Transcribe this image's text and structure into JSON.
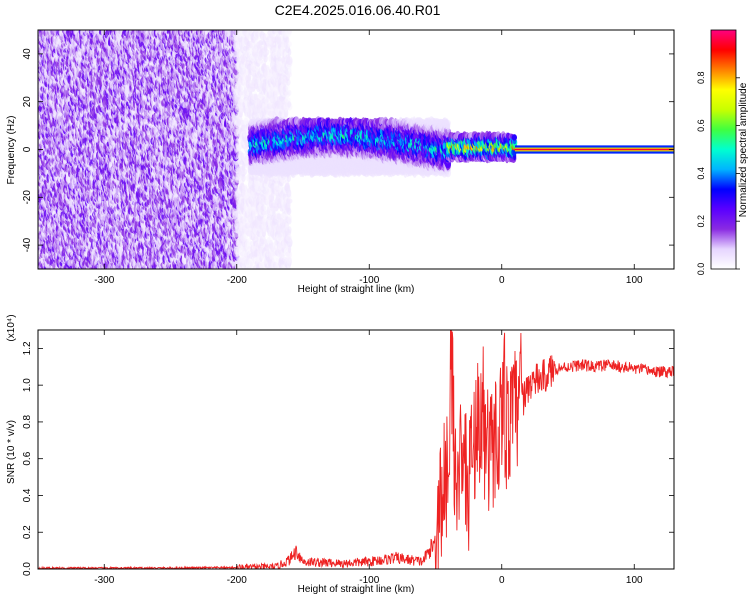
{
  "title": "C2E4.2025.016.06.40.R01",
  "chart_data": [
    {
      "type": "heatmap",
      "xlabel": "Height of straight line (km)",
      "ylabel": "Frequency (Hz)",
      "xlim": [
        -350,
        130
      ],
      "ylim": [
        -50,
        50
      ],
      "xticks": [
        -300,
        -200,
        -100,
        0,
        100
      ],
      "yticks": [
        -40,
        -20,
        0,
        20,
        40
      ],
      "colorbar": {
        "label": "Normalized spectral amplitude",
        "range": [
          0.0,
          1.0
        ],
        "ticks": [
          "0.0",
          "0.2",
          "0.4",
          "0.6",
          "0.8"
        ],
        "colormap": [
          "#ffffff",
          "#e6d5ff",
          "#8a2be2",
          "#5a00ff",
          "#0000ff",
          "#00b4ff",
          "#00ffd0",
          "#40ff40",
          "#c8ff00",
          "#ffff00",
          "#ff8000",
          "#ff0000",
          "#ff0080"
        ]
      },
      "regions": [
        {
          "x_range": [
            -350,
            -200
          ],
          "freq_range": [
            -50,
            50
          ],
          "amplitude": 0.15,
          "description_pattern": "scattered"
        },
        {
          "x_range": [
            -200,
            -160
          ],
          "freq_range": [
            -50,
            50
          ],
          "amplitude": 0.05
        },
        {
          "x_range": [
            -190,
            -40
          ],
          "freq_range": [
            -10,
            12
          ],
          "amplitude": 0.3
        },
        {
          "x_range": [
            -40,
            10
          ],
          "freq_range": [
            -4,
            6
          ],
          "amplitude": 0.55
        },
        {
          "x_range": [
            10,
            130
          ],
          "freq_range": [
            -1,
            1
          ],
          "amplitude": 0.95
        }
      ]
    },
    {
      "type": "line",
      "xlabel": "Height of straight line (km)",
      "ylabel": "SNR (10 * v/v)",
      "y_multiplier": "(x10⁴)",
      "xlim": [
        -350,
        130
      ],
      "ylim": [
        0.0,
        1.3
      ],
      "xticks": [
        -300,
        -200,
        -100,
        0,
        100
      ],
      "yticks": [
        "0.0",
        "0.2",
        "0.4",
        "0.6",
        "0.8",
        "1.0",
        "1.2"
      ],
      "color": "#ee2222",
      "x": [
        -350,
        -300,
        -250,
        -200,
        -170,
        -160,
        -155,
        -150,
        -120,
        -100,
        -80,
        -60,
        -50,
        -45,
        -40,
        -38,
        -35,
        -30,
        -25,
        -20,
        -15,
        -10,
        -5,
        0,
        5,
        10,
        15,
        20,
        25,
        30,
        35,
        40,
        50,
        60,
        70,
        80,
        90,
        100,
        110,
        120,
        130
      ],
      "y": [
        0.005,
        0.005,
        0.005,
        0.008,
        0.012,
        0.05,
        0.1,
        0.04,
        0.03,
        0.04,
        0.06,
        0.04,
        0.15,
        0.4,
        0.6,
        1.15,
        0.5,
        0.55,
        0.45,
        0.75,
        0.8,
        0.6,
        0.7,
        0.85,
        0.75,
        0.85,
        0.9,
        1.0,
        1.02,
        1.04,
        1.06,
        1.09,
        1.1,
        1.11,
        1.1,
        1.11,
        1.1,
        1.09,
        1.08,
        1.07,
        1.08
      ]
    }
  ]
}
